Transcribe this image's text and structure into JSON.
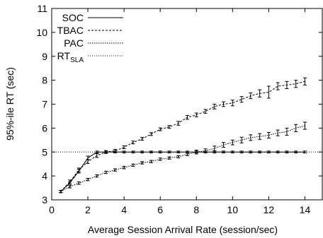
{
  "chart_data": {
    "type": "line",
    "xlabel": "Average Session Arrival Rate (session/sec)",
    "ylabel": "95%-ile RT (sec)",
    "xlim": [
      0,
      15
    ],
    "ylim": [
      3,
      11
    ],
    "xticks": [
      0,
      2,
      4,
      6,
      8,
      10,
      12,
      14
    ],
    "yticks": [
      3,
      4,
      5,
      6,
      7,
      8,
      9,
      10,
      11
    ],
    "grid": false,
    "legend_position": "top-left",
    "series": [
      {
        "name": "SOC",
        "style": "solid",
        "x": [
          0.5,
          1.0,
          1.5,
          2.0,
          2.5,
          3.0,
          3.5,
          4.0,
          4.5,
          5.0,
          5.5,
          6.0,
          6.5,
          7.0,
          7.5,
          8.0,
          8.5,
          9.0,
          9.5,
          10.0,
          10.5,
          11.0,
          11.5,
          12.0,
          12.5,
          13.0,
          13.5,
          14.0
        ],
        "values": [
          3.35,
          3.7,
          4.2,
          4.75,
          5.0,
          5.0,
          5.0,
          5.0,
          5.0,
          5.0,
          5.0,
          5.0,
          5.0,
          5.0,
          5.0,
          5.0,
          5.0,
          5.0,
          5.0,
          5.0,
          5.0,
          5.0,
          5.0,
          5.0,
          5.0,
          5.0,
          5.0,
          5.0
        ],
        "errors": [
          0.05,
          0.05,
          0.08,
          0.08,
          0.04,
          0.04,
          0.04,
          0.04,
          0.04,
          0.04,
          0.04,
          0.04,
          0.04,
          0.04,
          0.04,
          0.04,
          0.04,
          0.04,
          0.04,
          0.04,
          0.04,
          0.04,
          0.04,
          0.04,
          0.04,
          0.04,
          0.04,
          0.04
        ]
      },
      {
        "name": "TBAC",
        "style": "dashed",
        "x": [
          0.5,
          1.0,
          1.5,
          2.0,
          2.5,
          3.0,
          3.5,
          4.0,
          4.5,
          5.0,
          5.5,
          6.0,
          6.5,
          7.0,
          7.5,
          8.0,
          8.5,
          9.0,
          9.5,
          10.0,
          10.5,
          11.0,
          11.5,
          12.0,
          12.5,
          13.0,
          13.5,
          14.0
        ],
        "values": [
          3.35,
          3.75,
          4.25,
          4.6,
          4.85,
          5.0,
          5.05,
          5.2,
          5.4,
          5.55,
          5.75,
          5.95,
          6.05,
          6.2,
          6.45,
          6.55,
          6.7,
          6.9,
          7.0,
          7.05,
          7.2,
          7.35,
          7.45,
          7.5,
          7.75,
          7.8,
          7.85,
          7.95
        ],
        "errors": [
          0.05,
          0.08,
          0.08,
          0.08,
          0.08,
          0.06,
          0.06,
          0.06,
          0.06,
          0.06,
          0.06,
          0.06,
          0.06,
          0.08,
          0.08,
          0.08,
          0.08,
          0.1,
          0.1,
          0.12,
          0.12,
          0.12,
          0.15,
          0.25,
          0.15,
          0.15,
          0.15,
          0.15
        ]
      },
      {
        "name": "PAC",
        "style": "dotted",
        "x": [
          0.5,
          1.0,
          1.5,
          2.0,
          2.5,
          3.0,
          3.5,
          4.0,
          4.5,
          5.0,
          5.5,
          6.0,
          6.5,
          7.0,
          7.5,
          8.0,
          8.5,
          9.0,
          9.5,
          10.0,
          10.5,
          11.0,
          11.5,
          12.0,
          12.5,
          13.0,
          13.5,
          14.0
        ],
        "values": [
          3.35,
          3.55,
          3.7,
          3.85,
          4.0,
          4.15,
          4.25,
          4.35,
          4.45,
          4.55,
          4.6,
          4.7,
          4.75,
          4.8,
          4.9,
          5.0,
          5.05,
          5.15,
          5.3,
          5.4,
          5.5,
          5.6,
          5.65,
          5.7,
          5.8,
          5.85,
          6.0,
          6.1
        ],
        "errors": [
          0.04,
          0.05,
          0.05,
          0.05,
          0.05,
          0.05,
          0.05,
          0.05,
          0.05,
          0.05,
          0.05,
          0.05,
          0.05,
          0.05,
          0.05,
          0.08,
          0.08,
          0.1,
          0.1,
          0.1,
          0.12,
          0.12,
          0.12,
          0.12,
          0.12,
          0.15,
          0.15,
          0.15
        ]
      }
    ],
    "reference_line": {
      "label_main": "RT",
      "label_sub": "SLA",
      "y": 5,
      "style": "fine-dotted"
    }
  }
}
